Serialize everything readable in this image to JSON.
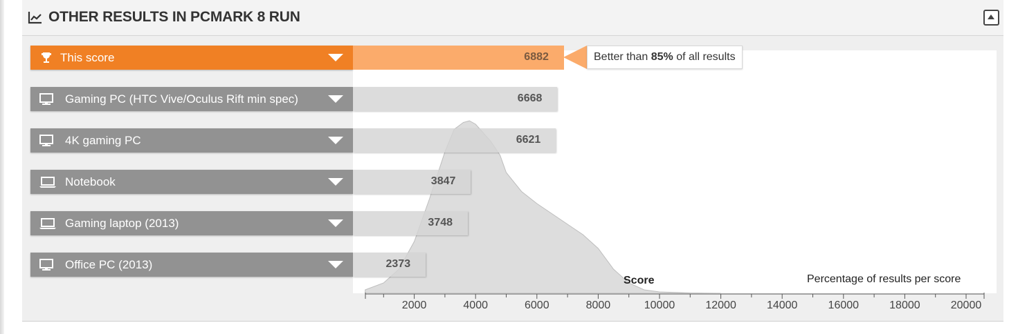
{
  "header": {
    "title": "OTHER RESULTS IN PCMARK 8 RUN",
    "icon": "line-chart-icon",
    "collapse_icon": "collapse-up-icon"
  },
  "callout": {
    "prefix": "Better than ",
    "percent": "85%",
    "suffix": " of all results"
  },
  "colors": {
    "active_label": "#f08024",
    "active_bar": "#fbab6b",
    "inactive_label": "#929292",
    "inactive_bar": "#d4d4d4",
    "distribution": "#dddddd"
  },
  "chart_data": {
    "type": "bar",
    "orientation": "horizontal",
    "categories": [
      "This score",
      "Gaming PC (HTC Vive/Oculus Rift min spec)",
      "4K gaming PC",
      "Notebook",
      "Gaming laptop (2013)",
      "Office PC (2013)"
    ],
    "category_icons": [
      "trophy-icon",
      "desktop-icon",
      "desktop-icon",
      "laptop-icon",
      "laptop-icon",
      "desktop-icon"
    ],
    "values": [
      6882,
      6668,
      6621,
      3847,
      3748,
      2373
    ],
    "highlighted_index": 0,
    "xlabel": "Score",
    "distribution_label": "Percentage of results per score",
    "xlim": [
      0,
      20500
    ],
    "xticks": [
      2000,
      4000,
      6000,
      8000,
      10000,
      12000,
      14000,
      16000,
      18000,
      20000
    ],
    "distribution": {
      "x": [
        400,
        1000,
        1500,
        2000,
        2500,
        3000,
        3300,
        3600,
        3800,
        4000,
        4200,
        4500,
        4800,
        5000,
        5500,
        6000,
        6500,
        7000,
        7500,
        8000,
        8500,
        9000,
        9500,
        10000,
        11000,
        12000
      ],
      "y": [
        0.02,
        0.06,
        0.14,
        0.3,
        0.55,
        0.82,
        0.95,
        0.99,
        1.0,
        0.98,
        0.94,
        0.88,
        0.8,
        0.7,
        0.59,
        0.52,
        0.46,
        0.4,
        0.34,
        0.26,
        0.14,
        0.06,
        0.02,
        0.008,
        0.002,
        0.0
      ]
    }
  }
}
